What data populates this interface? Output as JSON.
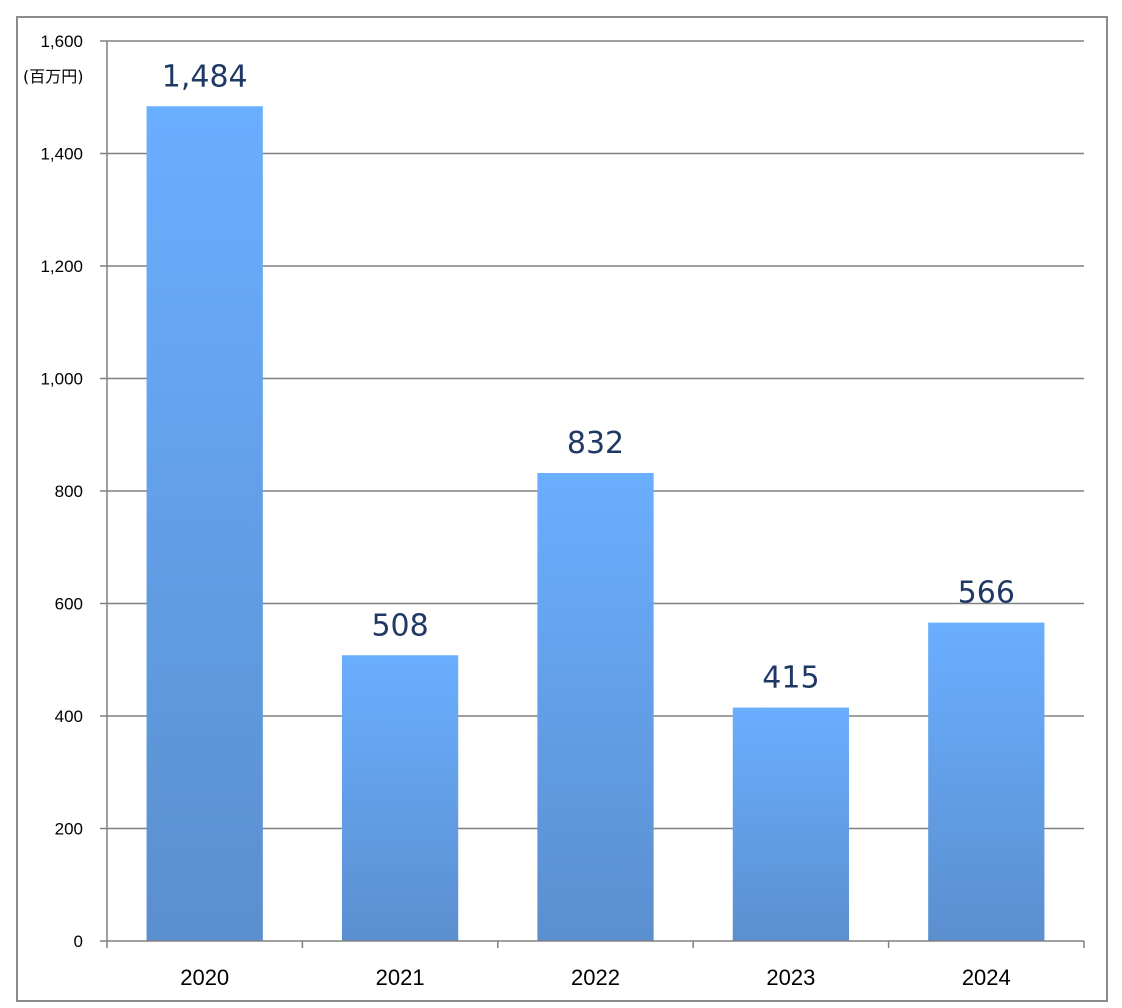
{
  "chart_data": {
    "type": "bar",
    "categories": [
      "2020",
      "2021",
      "2022",
      "2023",
      "2024"
    ],
    "values": [
      1484,
      508,
      832,
      415,
      566
    ],
    "data_labels": [
      "1,484",
      "508",
      "832",
      "415",
      "566"
    ],
    "ylabel": "(百万円)",
    "ylim": [
      0,
      1600
    ],
    "yticks": [
      0,
      200,
      400,
      600,
      800,
      1000,
      1200,
      1400,
      1600
    ],
    "ytick_labels": [
      "0",
      "200",
      "400",
      "600",
      "800",
      "1,000",
      "1,200",
      "1,400",
      "1,600"
    ],
    "grid": true,
    "legend": "none",
    "colors": {
      "bar_top": "#6aaeff",
      "bar_bottom": "#5b8fcf",
      "grid": "#808080",
      "label": "#1f3864"
    }
  }
}
